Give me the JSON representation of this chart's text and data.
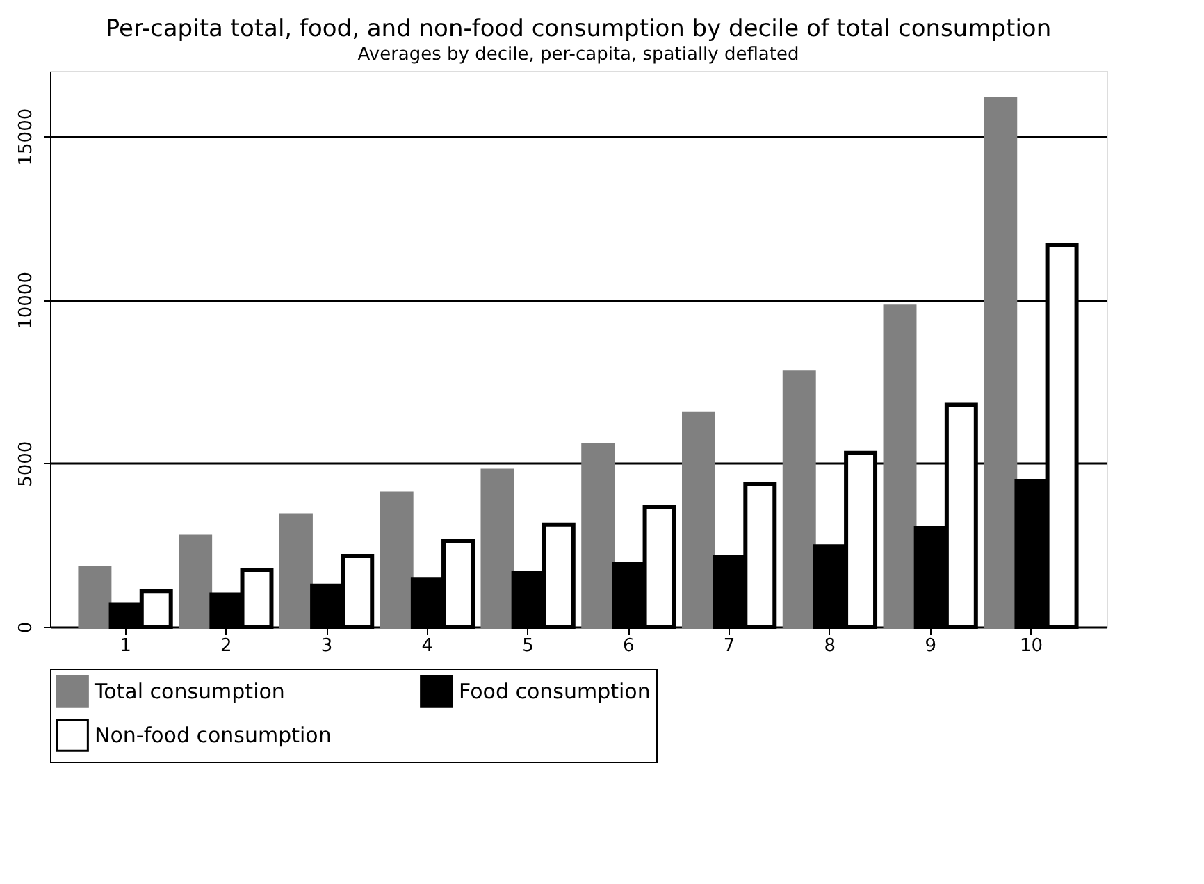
{
  "chart_data": {
    "type": "bar",
    "title": "Per-capita total, food, and non-food consumption by decile of total consumption",
    "subtitle": "Averages by decile, per-capita, spatially deflated",
    "categories": [
      "1",
      "2",
      "3",
      "4",
      "5",
      "6",
      "7",
      "8",
      "9",
      "10"
    ],
    "series": [
      {
        "name": "Total consumption",
        "color": "#808080",
        "values": [
          1800,
          2750,
          3410,
          4070,
          4770,
          5560,
          6510,
          7770,
          9790,
          16130
        ]
      },
      {
        "name": "Food consumption",
        "color": "#000000",
        "values": [
          690,
          990,
          1260,
          1460,
          1650,
          1910,
          2140,
          2460,
          3020,
          4460
        ]
      },
      {
        "name": "Non-food consumption",
        "color": "#ffffff",
        "values": [
          1100,
          1740,
          2170,
          2620,
          3130,
          3670,
          4380,
          5320,
          6790,
          11680
        ]
      }
    ],
    "ylim": [
      0,
      17000
    ],
    "yticks": [
      0,
      5000,
      10000,
      15000
    ],
    "grid": "y",
    "legend": "bottom"
  }
}
